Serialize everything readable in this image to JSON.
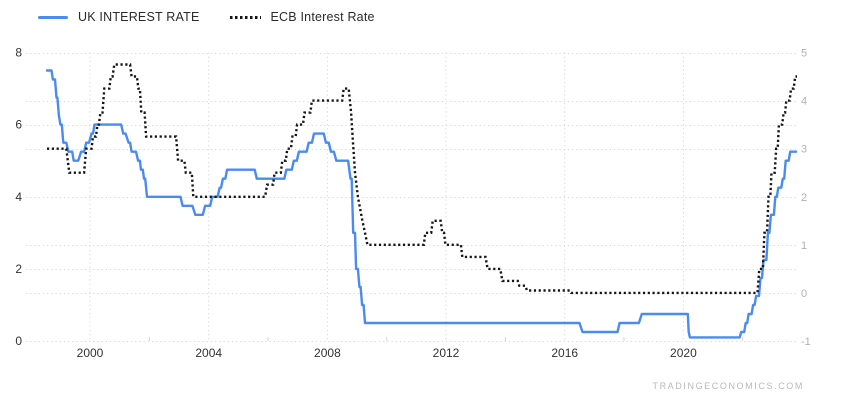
{
  "legend": {
    "items": [
      {
        "label": "UK INTEREST RATE"
      },
      {
        "label": "ECB Interest Rate"
      }
    ]
  },
  "watermark": "TRADINGECONOMICS.COM",
  "chart_data": {
    "type": "line",
    "title": "",
    "grid": true,
    "legend_position": "top-left",
    "x_axis": {
      "min": 1998.55,
      "max": 2023.83,
      "tick_years": [
        2000,
        2004,
        2008,
        2012,
        2016,
        2020
      ],
      "tick_labels": [
        "2000",
        "2004",
        "2008",
        "2012",
        "2016",
        "2020"
      ],
      "minor_tick_years": [
        2002,
        2006,
        2010,
        2014,
        2018,
        2022
      ]
    },
    "left_axis": {
      "min": 0,
      "max": 8,
      "ticks": [
        8,
        6,
        4,
        2,
        0
      ]
    },
    "right_axis": {
      "min": -1,
      "max": 5,
      "ticks": [
        5,
        4,
        3,
        2,
        1,
        0,
        -1
      ]
    },
    "colors": {
      "uk": "#4a8bf0",
      "ecb": "#151515",
      "gridline": "#d9d9d9"
    },
    "series": [
      {
        "name": "UK INTEREST RATE",
        "axis": "left",
        "style": "solid",
        "color": "#4a8bf0",
        "points": [
          [
            1998.55,
            7.5
          ],
          [
            1998.7,
            7.5
          ],
          [
            1998.75,
            7.25
          ],
          [
            1998.82,
            7.25
          ],
          [
            1998.87,
            6.75
          ],
          [
            1998.9,
            6.75
          ],
          [
            1998.95,
            6.25
          ],
          [
            1999.0,
            6.0
          ],
          [
            1999.05,
            6.0
          ],
          [
            1999.1,
            5.5
          ],
          [
            1999.2,
            5.5
          ],
          [
            1999.27,
            5.25
          ],
          [
            1999.4,
            5.25
          ],
          [
            1999.45,
            5.0
          ],
          [
            1999.6,
            5.0
          ],
          [
            1999.7,
            5.25
          ],
          [
            1999.8,
            5.25
          ],
          [
            1999.87,
            5.5
          ],
          [
            1999.97,
            5.5
          ],
          [
            2000.05,
            5.75
          ],
          [
            2000.1,
            5.75
          ],
          [
            2000.15,
            6.0
          ],
          [
            2001.05,
            6.0
          ],
          [
            2001.12,
            5.75
          ],
          [
            2001.2,
            5.75
          ],
          [
            2001.3,
            5.5
          ],
          [
            2001.35,
            5.5
          ],
          [
            2001.4,
            5.25
          ],
          [
            2001.55,
            5.25
          ],
          [
            2001.62,
            5.0
          ],
          [
            2001.68,
            5.0
          ],
          [
            2001.72,
            4.75
          ],
          [
            2001.78,
            4.75
          ],
          [
            2001.82,
            4.5
          ],
          [
            2001.86,
            4.5
          ],
          [
            2001.92,
            4.0
          ],
          [
            2003.05,
            4.0
          ],
          [
            2003.12,
            3.75
          ],
          [
            2003.45,
            3.75
          ],
          [
            2003.55,
            3.5
          ],
          [
            2003.8,
            3.5
          ],
          [
            2003.88,
            3.75
          ],
          [
            2004.05,
            3.75
          ],
          [
            2004.12,
            4.0
          ],
          [
            2004.3,
            4.0
          ],
          [
            2004.37,
            4.25
          ],
          [
            2004.42,
            4.25
          ],
          [
            2004.48,
            4.5
          ],
          [
            2004.56,
            4.5
          ],
          [
            2004.62,
            4.75
          ],
          [
            2005.55,
            4.75
          ],
          [
            2005.62,
            4.5
          ],
          [
            2006.55,
            4.5
          ],
          [
            2006.62,
            4.75
          ],
          [
            2006.8,
            4.75
          ],
          [
            2006.87,
            5.0
          ],
          [
            2006.97,
            5.0
          ],
          [
            2007.04,
            5.25
          ],
          [
            2007.3,
            5.25
          ],
          [
            2007.37,
            5.5
          ],
          [
            2007.48,
            5.5
          ],
          [
            2007.55,
            5.75
          ],
          [
            2007.88,
            5.75
          ],
          [
            2007.95,
            5.5
          ],
          [
            2008.05,
            5.5
          ],
          [
            2008.12,
            5.25
          ],
          [
            2008.22,
            5.25
          ],
          [
            2008.3,
            5.0
          ],
          [
            2008.7,
            5.0
          ],
          [
            2008.78,
            4.5
          ],
          [
            2008.82,
            4.5
          ],
          [
            2008.87,
            3.0
          ],
          [
            2008.93,
            3.0
          ],
          [
            2008.97,
            2.0
          ],
          [
            2009.03,
            2.0
          ],
          [
            2009.08,
            1.5
          ],
          [
            2009.12,
            1.5
          ],
          [
            2009.17,
            1.0
          ],
          [
            2009.22,
            1.0
          ],
          [
            2009.27,
            0.5
          ],
          [
            2016.5,
            0.5
          ],
          [
            2016.6,
            0.25
          ],
          [
            2017.78,
            0.25
          ],
          [
            2017.85,
            0.5
          ],
          [
            2018.5,
            0.5
          ],
          [
            2018.6,
            0.75
          ],
          [
            2020.15,
            0.75
          ],
          [
            2020.18,
            0.25
          ],
          [
            2020.22,
            0.1
          ],
          [
            2021.9,
            0.1
          ],
          [
            2021.95,
            0.25
          ],
          [
            2022.05,
            0.25
          ],
          [
            2022.1,
            0.5
          ],
          [
            2022.15,
            0.5
          ],
          [
            2022.2,
            0.75
          ],
          [
            2022.3,
            0.75
          ],
          [
            2022.35,
            1.0
          ],
          [
            2022.4,
            1.0
          ],
          [
            2022.45,
            1.25
          ],
          [
            2022.55,
            1.25
          ],
          [
            2022.6,
            1.75
          ],
          [
            2022.65,
            1.75
          ],
          [
            2022.7,
            2.25
          ],
          [
            2022.8,
            2.25
          ],
          [
            2022.85,
            3.0
          ],
          [
            2022.9,
            3.0
          ],
          [
            2022.95,
            3.5
          ],
          [
            2023.05,
            3.5
          ],
          [
            2023.1,
            4.0
          ],
          [
            2023.15,
            4.0
          ],
          [
            2023.2,
            4.25
          ],
          [
            2023.3,
            4.25
          ],
          [
            2023.35,
            4.5
          ],
          [
            2023.4,
            4.5
          ],
          [
            2023.45,
            5.0
          ],
          [
            2023.55,
            5.0
          ],
          [
            2023.6,
            5.25
          ],
          [
            2023.8,
            5.25
          ]
        ]
      },
      {
        "name": "ECB Interest Rate",
        "axis": "right",
        "style": "dotted",
        "color": "#151515",
        "points": [
          [
            1998.55,
            3.0
          ],
          [
            1999.2,
            3.0
          ],
          [
            1999.3,
            2.5
          ],
          [
            1999.8,
            2.5
          ],
          [
            1999.87,
            3.0
          ],
          [
            2000.05,
            3.0
          ],
          [
            2000.1,
            3.25
          ],
          [
            2000.2,
            3.25
          ],
          [
            2000.25,
            3.5
          ],
          [
            2000.3,
            3.5
          ],
          [
            2000.35,
            3.75
          ],
          [
            2000.42,
            3.75
          ],
          [
            2000.48,
            4.25
          ],
          [
            2000.65,
            4.25
          ],
          [
            2000.7,
            4.5
          ],
          [
            2000.76,
            4.5
          ],
          [
            2000.82,
            4.75
          ],
          [
            2001.35,
            4.75
          ],
          [
            2001.4,
            4.5
          ],
          [
            2001.58,
            4.5
          ],
          [
            2001.63,
            4.25
          ],
          [
            2001.68,
            4.25
          ],
          [
            2001.73,
            3.75
          ],
          [
            2001.84,
            3.75
          ],
          [
            2001.89,
            3.25
          ],
          [
            2002.9,
            3.25
          ],
          [
            2002.97,
            2.75
          ],
          [
            2003.18,
            2.75
          ],
          [
            2003.23,
            2.5
          ],
          [
            2003.43,
            2.5
          ],
          [
            2003.48,
            2.0
          ],
          [
            2005.9,
            2.0
          ],
          [
            2005.97,
            2.25
          ],
          [
            2006.17,
            2.25
          ],
          [
            2006.22,
            2.5
          ],
          [
            2006.43,
            2.5
          ],
          [
            2006.48,
            2.75
          ],
          [
            2006.6,
            2.75
          ],
          [
            2006.65,
            3.0
          ],
          [
            2006.77,
            3.0
          ],
          [
            2006.82,
            3.25
          ],
          [
            2006.93,
            3.25
          ],
          [
            2006.98,
            3.5
          ],
          [
            2007.18,
            3.5
          ],
          [
            2007.23,
            3.75
          ],
          [
            2007.43,
            3.75
          ],
          [
            2007.48,
            4.0
          ],
          [
            2008.5,
            4.0
          ],
          [
            2008.55,
            4.25
          ],
          [
            2008.72,
            4.25
          ],
          [
            2008.8,
            3.75
          ],
          [
            2008.85,
            3.25
          ],
          [
            2008.93,
            2.5
          ],
          [
            2009.03,
            2.0
          ],
          [
            2009.18,
            1.5
          ],
          [
            2009.27,
            1.25
          ],
          [
            2009.35,
            1.0
          ],
          [
            2011.25,
            1.0
          ],
          [
            2011.3,
            1.25
          ],
          [
            2011.5,
            1.25
          ],
          [
            2011.55,
            1.5
          ],
          [
            2011.82,
            1.5
          ],
          [
            2011.87,
            1.25
          ],
          [
            2011.93,
            1.25
          ],
          [
            2011.98,
            1.0
          ],
          [
            2012.5,
            1.0
          ],
          [
            2012.55,
            0.75
          ],
          [
            2013.33,
            0.75
          ],
          [
            2013.4,
            0.5
          ],
          [
            2013.83,
            0.5
          ],
          [
            2013.9,
            0.25
          ],
          [
            2014.42,
            0.25
          ],
          [
            2014.47,
            0.15
          ],
          [
            2014.67,
            0.15
          ],
          [
            2014.73,
            0.05
          ],
          [
            2016.17,
            0.05
          ],
          [
            2016.22,
            0.0
          ],
          [
            2022.5,
            0.0
          ],
          [
            2022.56,
            0.5
          ],
          [
            2022.68,
            0.5
          ],
          [
            2022.73,
            1.25
          ],
          [
            2022.82,
            1.25
          ],
          [
            2022.87,
            2.0
          ],
          [
            2022.93,
            2.0
          ],
          [
            2022.97,
            2.5
          ],
          [
            2023.08,
            2.5
          ],
          [
            2023.13,
            3.0
          ],
          [
            2023.18,
            3.0
          ],
          [
            2023.22,
            3.5
          ],
          [
            2023.33,
            3.5
          ],
          [
            2023.38,
            3.75
          ],
          [
            2023.43,
            3.75
          ],
          [
            2023.47,
            4.0
          ],
          [
            2023.58,
            4.0
          ],
          [
            2023.63,
            4.25
          ],
          [
            2023.72,
            4.25
          ],
          [
            2023.77,
            4.5
          ],
          [
            2023.83,
            4.5
          ]
        ]
      }
    ]
  }
}
